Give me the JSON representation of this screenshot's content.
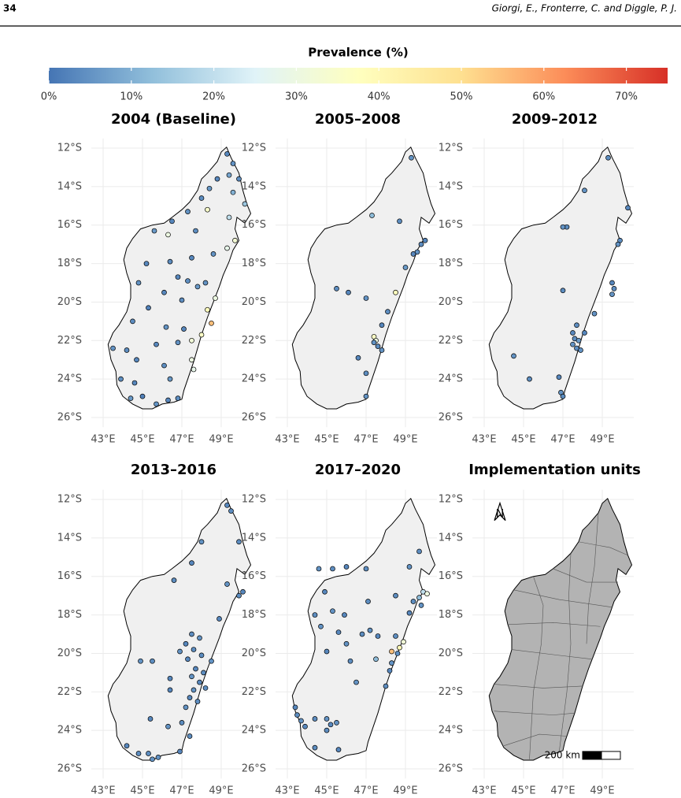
{
  "header": {
    "page": "34",
    "authors": "Giorgi, E., Fronterre, C. and Diggle, P. J."
  },
  "map_axes": {
    "xlim": [
      42.4,
      50.6
    ],
    "ylim": [
      -26.5,
      -11.5
    ],
    "xticks": [
      {
        "value": 43,
        "label": "43°E"
      },
      {
        "value": 45,
        "label": "45°E"
      },
      {
        "value": 47,
        "label": "47°E"
      },
      {
        "value": 49,
        "label": "49°E"
      }
    ],
    "yticks": [
      {
        "value": -12,
        "label": "12°S"
      },
      {
        "value": -14,
        "label": "14°S"
      },
      {
        "value": -16,
        "label": "16°S"
      },
      {
        "value": -18,
        "label": "18°S"
      },
      {
        "value": -20,
        "label": "20°S"
      },
      {
        "value": -22,
        "label": "22°S"
      },
      {
        "value": -24,
        "label": "24°S"
      },
      {
        "value": -26,
        "label": "26°S"
      }
    ],
    "grid": true
  },
  "chart_data": [
    {
      "type": "colorbar",
      "title": "Prevalence (%)",
      "colors": [
        "#4575b4",
        "#91bfdb",
        "#e0f3f8",
        "#ffffbf",
        "#fee090",
        "#fc8d59",
        "#d73027"
      ],
      "xlim": [
        0,
        75
      ],
      "xticks": [
        {
          "value": 0,
          "label": "0%"
        },
        {
          "value": 10,
          "label": "10%"
        },
        {
          "value": 20,
          "label": "20%"
        },
        {
          "value": 30,
          "label": "30%"
        },
        {
          "value": 40,
          "label": "40%"
        },
        {
          "value": 50,
          "label": "50%"
        },
        {
          "value": 60,
          "label": "60%"
        },
        {
          "value": 70,
          "label": "70%"
        }
      ]
    },
    {
      "type": "map",
      "title": "2004 (Baseline)",
      "points": [
        [
          49.3,
          -12.3,
          3
        ],
        [
          49.6,
          -12.8,
          5
        ],
        [
          49.9,
          -13.6,
          4
        ],
        [
          49.4,
          -13.4,
          8
        ],
        [
          48.8,
          -13.6,
          3
        ],
        [
          48.4,
          -14.1,
          6
        ],
        [
          49.6,
          -14.3,
          10
        ],
        [
          50.2,
          -14.9,
          14
        ],
        [
          48.0,
          -14.6,
          4
        ],
        [
          48.3,
          -15.2,
          35
        ],
        [
          49.4,
          -15.6,
          20
        ],
        [
          47.3,
          -15.3,
          5
        ],
        [
          46.5,
          -15.8,
          3
        ],
        [
          45.6,
          -16.3,
          6
        ],
        [
          46.3,
          -16.5,
          30
        ],
        [
          47.7,
          -16.3,
          4
        ],
        [
          49.7,
          -16.8,
          33
        ],
        [
          49.3,
          -17.2,
          28
        ],
        [
          48.6,
          -17.5,
          5
        ],
        [
          47.5,
          -17.7,
          3
        ],
        [
          46.4,
          -17.9,
          4
        ],
        [
          45.2,
          -18.0,
          3
        ],
        [
          44.8,
          -19.0,
          5
        ],
        [
          46.8,
          -18.7,
          3
        ],
        [
          47.3,
          -18.9,
          4
        ],
        [
          47.8,
          -19.2,
          6
        ],
        [
          48.2,
          -19.0,
          5
        ],
        [
          46.1,
          -19.5,
          3
        ],
        [
          47.0,
          -19.9,
          4
        ],
        [
          48.7,
          -19.8,
          30
        ],
        [
          48.3,
          -20.4,
          38
        ],
        [
          45.3,
          -20.3,
          2
        ],
        [
          44.5,
          -21.0,
          4
        ],
        [
          46.2,
          -21.3,
          5
        ],
        [
          47.1,
          -21.4,
          3
        ],
        [
          48.5,
          -21.1,
          55
        ],
        [
          48.0,
          -21.7,
          36
        ],
        [
          47.5,
          -22.0,
          32
        ],
        [
          46.8,
          -22.1,
          5
        ],
        [
          45.7,
          -22.2,
          3
        ],
        [
          44.2,
          -22.5,
          4
        ],
        [
          43.5,
          -22.4,
          5
        ],
        [
          44.7,
          -23.0,
          3
        ],
        [
          46.1,
          -23.3,
          4
        ],
        [
          47.5,
          -23.0,
          30
        ],
        [
          47.6,
          -23.5,
          28
        ],
        [
          46.4,
          -24.0,
          6
        ],
        [
          44.6,
          -24.2,
          3
        ],
        [
          43.9,
          -24.0,
          4
        ],
        [
          45.0,
          -24.9,
          2
        ],
        [
          45.7,
          -25.3,
          5
        ],
        [
          46.8,
          -25.0,
          4
        ],
        [
          46.3,
          -25.1,
          3
        ],
        [
          44.4,
          -25.0,
          6
        ]
      ]
    },
    {
      "type": "map",
      "title": "2005–2008",
      "points": [
        [
          49.3,
          -12.5,
          5
        ],
        [
          47.3,
          -15.5,
          12
        ],
        [
          48.7,
          -15.8,
          4
        ],
        [
          50.0,
          -16.8,
          3
        ],
        [
          49.8,
          -17.0,
          4
        ],
        [
          49.6,
          -17.4,
          5
        ],
        [
          49.4,
          -17.5,
          3
        ],
        [
          49.0,
          -18.2,
          6
        ],
        [
          45.5,
          -19.3,
          4
        ],
        [
          46.1,
          -19.5,
          3
        ],
        [
          47.0,
          -19.8,
          5
        ],
        [
          48.5,
          -19.5,
          38
        ],
        [
          48.1,
          -20.5,
          4
        ],
        [
          47.8,
          -21.2,
          3
        ],
        [
          47.4,
          -21.8,
          36
        ],
        [
          47.5,
          -22.0,
          30
        ],
        [
          47.4,
          -22.1,
          5
        ],
        [
          47.6,
          -22.3,
          4
        ],
        [
          47.8,
          -22.5,
          5
        ],
        [
          47.0,
          -23.7,
          4
        ],
        [
          46.6,
          -22.9,
          3
        ],
        [
          47.0,
          -24.9,
          5
        ]
      ]
    },
    {
      "type": "map",
      "title": "2009–2012",
      "points": [
        [
          49.3,
          -12.5,
          4
        ],
        [
          48.1,
          -14.2,
          5
        ],
        [
          47.2,
          -16.1,
          4
        ],
        [
          47.0,
          -16.1,
          5
        ],
        [
          50.3,
          -15.1,
          3
        ],
        [
          49.9,
          -16.8,
          4
        ],
        [
          49.8,
          -17.0,
          5
        ],
        [
          49.5,
          -19.0,
          3
        ],
        [
          49.6,
          -19.3,
          4
        ],
        [
          49.5,
          -19.6,
          5
        ],
        [
          47.0,
          -19.4,
          4
        ],
        [
          48.6,
          -20.6,
          5
        ],
        [
          47.7,
          -21.2,
          4
        ],
        [
          47.5,
          -21.6,
          3
        ],
        [
          47.6,
          -21.9,
          4
        ],
        [
          47.5,
          -22.2,
          5
        ],
        [
          47.8,
          -22.0,
          6
        ],
        [
          47.7,
          -22.4,
          4
        ],
        [
          48.1,
          -21.6,
          3
        ],
        [
          44.5,
          -22.8,
          5
        ],
        [
          45.3,
          -24.0,
          4
        ],
        [
          46.8,
          -23.9,
          3
        ],
        [
          46.9,
          -24.7,
          5
        ],
        [
          47.0,
          -24.9,
          4
        ],
        [
          47.9,
          -22.5,
          5
        ]
      ]
    },
    {
      "type": "map",
      "title": "2013–2016",
      "points": [
        [
          49.3,
          -12.3,
          3
        ],
        [
          49.5,
          -12.6,
          4
        ],
        [
          48.0,
          -14.2,
          5
        ],
        [
          49.9,
          -14.2,
          4
        ],
        [
          47.5,
          -15.3,
          3
        ],
        [
          46.6,
          -16.2,
          4
        ],
        [
          49.3,
          -16.4,
          5
        ],
        [
          50.1,
          -16.8,
          3
        ],
        [
          49.9,
          -17.0,
          4
        ],
        [
          48.9,
          -18.2,
          3
        ],
        [
          47.5,
          -19.0,
          4
        ],
        [
          47.9,
          -19.2,
          5
        ],
        [
          47.2,
          -19.5,
          3
        ],
        [
          47.6,
          -19.8,
          4
        ],
        [
          46.9,
          -19.9,
          5
        ],
        [
          47.3,
          -20.3,
          3
        ],
        [
          48.0,
          -20.1,
          4
        ],
        [
          48.5,
          -20.4,
          5
        ],
        [
          47.7,
          -20.8,
          3
        ],
        [
          48.1,
          -21.0,
          4
        ],
        [
          47.5,
          -21.2,
          5
        ],
        [
          47.9,
          -21.5,
          3
        ],
        [
          48.2,
          -21.8,
          4
        ],
        [
          47.6,
          -21.9,
          5
        ],
        [
          47.4,
          -22.3,
          3
        ],
        [
          47.8,
          -22.5,
          4
        ],
        [
          47.2,
          -22.8,
          5
        ],
        [
          46.4,
          -21.9,
          3
        ],
        [
          45.5,
          -20.4,
          4
        ],
        [
          44.9,
          -20.4,
          5
        ],
        [
          46.4,
          -21.3,
          3
        ],
        [
          47.0,
          -23.6,
          4
        ],
        [
          46.3,
          -23.8,
          5
        ],
        [
          45.4,
          -23.4,
          3
        ],
        [
          47.4,
          -24.3,
          4
        ],
        [
          46.9,
          -25.1,
          3
        ],
        [
          45.3,
          -25.2,
          4
        ],
        [
          45.8,
          -25.4,
          5
        ],
        [
          44.2,
          -24.8,
          3
        ],
        [
          44.8,
          -25.2,
          4
        ],
        [
          45.5,
          -25.5,
          5
        ]
      ]
    },
    {
      "type": "map",
      "title": "2017–2020",
      "points": [
        [
          49.7,
          -14.7,
          4
        ],
        [
          49.2,
          -15.5,
          5
        ],
        [
          46.0,
          -15.5,
          3
        ],
        [
          45.3,
          -15.6,
          4
        ],
        [
          44.6,
          -15.6,
          5
        ],
        [
          47.0,
          -15.6,
          4
        ],
        [
          44.9,
          -16.8,
          3
        ],
        [
          47.1,
          -17.3,
          4
        ],
        [
          49.9,
          -16.8,
          20
        ],
        [
          50.1,
          -16.9,
          30
        ],
        [
          49.7,
          -17.1,
          12
        ],
        [
          49.4,
          -17.3,
          4
        ],
        [
          49.8,
          -17.5,
          5
        ],
        [
          49.2,
          -17.9,
          3
        ],
        [
          48.5,
          -17.0,
          4
        ],
        [
          45.3,
          -17.8,
          5
        ],
        [
          45.9,
          -18.0,
          3
        ],
        [
          44.4,
          -18.0,
          4
        ],
        [
          44.7,
          -18.6,
          5
        ],
        [
          45.6,
          -18.9,
          3
        ],
        [
          46.8,
          -19.0,
          4
        ],
        [
          47.2,
          -18.8,
          5
        ],
        [
          47.6,
          -19.1,
          3
        ],
        [
          48.5,
          -19.1,
          4
        ],
        [
          48.9,
          -19.4,
          32
        ],
        [
          48.7,
          -19.7,
          40
        ],
        [
          48.3,
          -19.9,
          55
        ],
        [
          48.6,
          -20.0,
          4
        ],
        [
          47.5,
          -20.3,
          12
        ],
        [
          48.3,
          -20.5,
          5
        ],
        [
          48.2,
          -20.9,
          3
        ],
        [
          48.0,
          -21.7,
          4
        ],
        [
          46.0,
          -19.5,
          5
        ],
        [
          45.0,
          -19.9,
          3
        ],
        [
          46.2,
          -20.4,
          4
        ],
        [
          46.5,
          -21.5,
          5
        ],
        [
          43.4,
          -22.8,
          3
        ],
        [
          43.5,
          -23.2,
          4
        ],
        [
          43.7,
          -23.5,
          5
        ],
        [
          43.9,
          -23.8,
          3
        ],
        [
          44.4,
          -23.4,
          4
        ],
        [
          45.0,
          -23.4,
          5
        ],
        [
          45.2,
          -23.7,
          3
        ],
        [
          45.0,
          -24.0,
          4
        ],
        [
          45.5,
          -23.6,
          5
        ],
        [
          45.6,
          -25.0,
          3
        ],
        [
          44.4,
          -24.9,
          4
        ]
      ]
    },
    {
      "type": "units",
      "title": "Implementation units",
      "north_label": "N",
      "scale_label": "200 km"
    }
  ]
}
